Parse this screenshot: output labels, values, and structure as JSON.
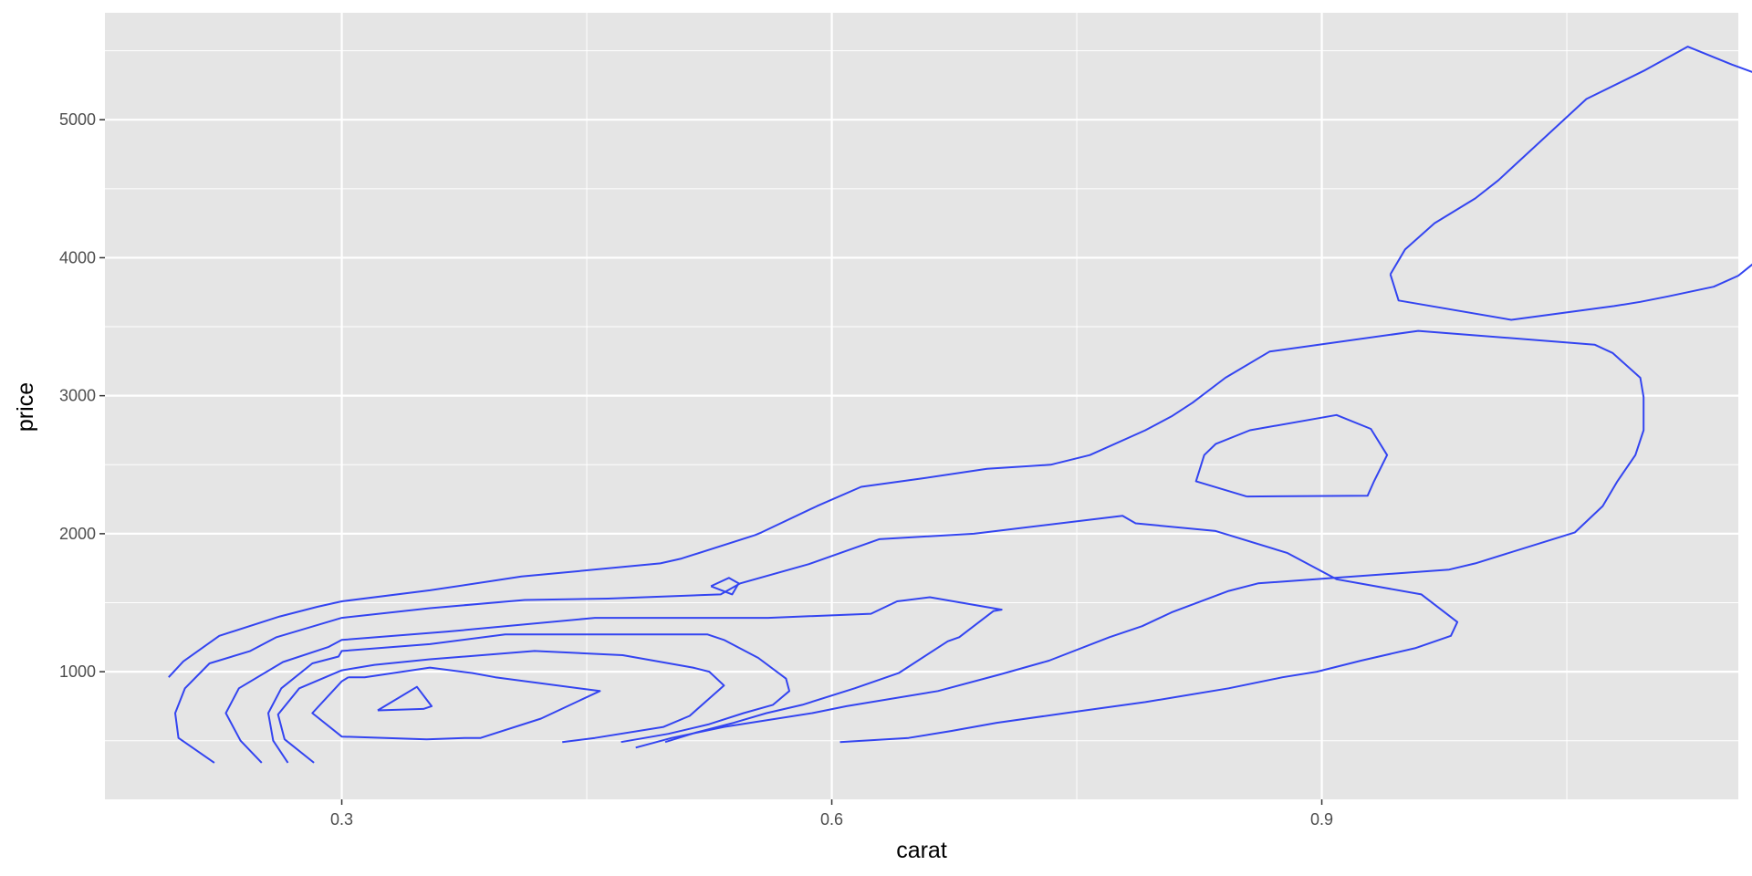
{
  "chart_data": {
    "type": "contour",
    "xlabel": "carat",
    "ylabel": "price",
    "xlim": [
      0.155,
      1.155
    ],
    "ylim": [
      75,
      5775
    ],
    "x_ticks": [
      0.3,
      0.6,
      0.9
    ],
    "x_tick_labels": [
      "0.3",
      "0.6",
      "0.9"
    ],
    "x_minor_ticks": [
      0.45,
      0.75,
      1.05
    ],
    "y_ticks": [
      1000,
      2000,
      3000,
      4000,
      5000
    ],
    "y_tick_labels": [
      "1000",
      "2000",
      "3000",
      "4000",
      "5000"
    ],
    "y_minor_ticks": [
      500,
      1500,
      2500,
      3500,
      4500,
      5500
    ],
    "grid": true,
    "legend": "none",
    "colors": {
      "panel": "#e5e5e5",
      "grid": "#ffffff",
      "contour": "#3344f0",
      "tick_text": "#4d4d4d",
      "axis_title": "#000000"
    },
    "contours": [
      {
        "points": [
          [
            0.194,
            960
          ],
          [
            0.203,
            1075
          ],
          [
            0.225,
            1260
          ],
          [
            0.262,
            1400
          ],
          [
            0.285,
            1470
          ],
          [
            0.3,
            1510
          ],
          [
            0.354,
            1590
          ],
          [
            0.41,
            1690
          ],
          [
            0.495,
            1785
          ],
          [
            0.508,
            1820
          ],
          [
            0.553,
            1990
          ],
          [
            0.557,
            2010
          ],
          [
            0.591,
            2200
          ],
          [
            0.618,
            2340
          ],
          [
            0.655,
            2400
          ],
          [
            0.695,
            2470
          ],
          [
            0.734,
            2500
          ],
          [
            0.758,
            2570
          ],
          [
            0.792,
            2750
          ],
          [
            0.808,
            2850
          ],
          [
            0.821,
            2950
          ],
          [
            0.841,
            3130
          ],
          [
            0.868,
            3320
          ],
          [
            0.959,
            3470
          ],
          [
            1.067,
            3370
          ],
          [
            1.078,
            3310
          ],
          [
            1.095,
            3130
          ],
          [
            1.097,
            2990
          ],
          [
            1.097,
            2750
          ],
          [
            1.092,
            2570
          ],
          [
            1.081,
            2380
          ],
          [
            1.072,
            2200
          ],
          [
            1.055,
            2010
          ],
          [
            0.994,
            1785
          ],
          [
            0.978,
            1740
          ],
          [
            0.861,
            1640
          ],
          [
            0.843,
            1585
          ],
          [
            0.808,
            1430
          ],
          [
            0.79,
            1330
          ],
          [
            0.77,
            1250
          ],
          [
            0.733,
            1080
          ],
          [
            0.703,
            980
          ],
          [
            0.665,
            860
          ],
          [
            0.609,
            750
          ],
          [
            0.588,
            700
          ],
          [
            0.534,
            600
          ],
          [
            0.502,
            520
          ],
          [
            0.48,
            450
          ]
        ]
      },
      {
        "points": [
          [
            0.854,
            2270
          ],
          [
            0.928,
            2275
          ],
          [
            0.932,
            2380
          ],
          [
            0.94,
            2570
          ],
          [
            0.93,
            2760
          ],
          [
            0.909,
            2860
          ],
          [
            0.856,
            2750
          ],
          [
            0.835,
            2650
          ],
          [
            0.828,
            2570
          ],
          [
            0.823,
            2380
          ],
          [
            0.854,
            2270
          ]
        ]
      },
      {
        "points": [
          [
            0.222,
            340
          ],
          [
            0.2,
            520
          ],
          [
            0.198,
            700
          ],
          [
            0.204,
            880
          ],
          [
            0.219,
            1060
          ],
          [
            0.244,
            1150
          ],
          [
            0.26,
            1250
          ],
          [
            0.3,
            1390
          ],
          [
            0.354,
            1460
          ],
          [
            0.412,
            1520
          ],
          [
            0.463,
            1530
          ],
          [
            0.532,
            1560
          ],
          [
            0.544,
            1640
          ],
          [
            0.586,
            1780
          ],
          [
            0.629,
            1960
          ],
          [
            0.687,
            2000
          ],
          [
            0.778,
            2130
          ],
          [
            0.786,
            2075
          ],
          [
            0.835,
            2020
          ],
          [
            0.879,
            1860
          ],
          [
            0.909,
            1670
          ],
          [
            0.961,
            1560
          ],
          [
            0.983,
            1360
          ],
          [
            0.979,
            1260
          ],
          [
            0.957,
            1170
          ],
          [
            0.924,
            1080
          ],
          [
            0.897,
            1000
          ],
          [
            0.876,
            960
          ],
          [
            0.843,
            880
          ],
          [
            0.792,
            780
          ],
          [
            0.743,
            700
          ],
          [
            0.701,
            630
          ],
          [
            0.673,
            570
          ],
          [
            0.647,
            520
          ],
          [
            0.605,
            490
          ]
        ]
      },
      {
        "points": [
          [
            0.251,
            340
          ],
          [
            0.238,
            500
          ],
          [
            0.229,
            700
          ],
          [
            0.237,
            880
          ],
          [
            0.264,
            1070
          ],
          [
            0.292,
            1180
          ],
          [
            0.3,
            1230
          ],
          [
            0.364,
            1290
          ],
          [
            0.455,
            1390
          ],
          [
            0.561,
            1390
          ],
          [
            0.624,
            1420
          ],
          [
            0.64,
            1510
          ],
          [
            0.66,
            1540
          ],
          [
            0.704,
            1450
          ],
          [
            0.699,
            1440
          ],
          [
            0.678,
            1250
          ],
          [
            0.671,
            1220
          ],
          [
            0.641,
            990
          ],
          [
            0.614,
            880
          ],
          [
            0.582,
            760
          ],
          [
            0.56,
            700
          ],
          [
            0.54,
            630
          ],
          [
            0.517,
            560
          ],
          [
            0.498,
            490
          ]
        ]
      },
      {
        "points": [
          [
            0.267,
            340
          ],
          [
            0.258,
            500
          ],
          [
            0.255,
            700
          ],
          [
            0.263,
            880
          ],
          [
            0.282,
            1060
          ],
          [
            0.298,
            1110
          ],
          [
            0.3,
            1150
          ],
          [
            0.354,
            1200
          ],
          [
            0.4,
            1270
          ],
          [
            0.524,
            1270
          ],
          [
            0.534,
            1230
          ],
          [
            0.555,
            1100
          ],
          [
            0.572,
            950
          ],
          [
            0.574,
            860
          ],
          [
            0.564,
            760
          ],
          [
            0.546,
            700
          ],
          [
            0.525,
            620
          ],
          [
            0.5,
            550
          ],
          [
            0.471,
            490
          ]
        ]
      },
      {
        "points": [
          [
            0.283,
            340
          ],
          [
            0.265,
            510
          ],
          [
            0.261,
            690
          ],
          [
            0.274,
            880
          ],
          [
            0.3,
            1010
          ],
          [
            0.32,
            1050
          ],
          [
            0.354,
            1090
          ],
          [
            0.418,
            1150
          ],
          [
            0.472,
            1120
          ],
          [
            0.515,
            1030
          ],
          [
            0.525,
            1000
          ],
          [
            0.534,
            900
          ],
          [
            0.513,
            680
          ],
          [
            0.497,
            600
          ],
          [
            0.455,
            520
          ],
          [
            0.435,
            490
          ]
        ]
      },
      {
        "points": [
          [
            0.304,
            960
          ],
          [
            0.3,
            930
          ],
          [
            0.282,
            700
          ],
          [
            0.3,
            530
          ],
          [
            0.352,
            510
          ],
          [
            0.376,
            520
          ],
          [
            0.385,
            520
          ],
          [
            0.422,
            660
          ],
          [
            0.458,
            860
          ],
          [
            0.394,
            960
          ],
          [
            0.38,
            990
          ],
          [
            0.354,
            1030
          ],
          [
            0.314,
            960
          ],
          [
            0.304,
            960
          ]
        ]
      },
      {
        "points": [
          [
            0.322,
            720
          ],
          [
            0.346,
            890
          ],
          [
            0.355,
            750
          ],
          [
            0.35,
            730
          ],
          [
            0.322,
            720
          ]
        ]
      },
      {
        "points": [
          [
            0.526,
            1620
          ],
          [
            0.539,
            1560
          ],
          [
            0.543,
            1640
          ],
          [
            0.537,
            1680
          ],
          [
            0.526,
            1620
          ]
        ]
      },
      {
        "points": [
          [
            0.942,
            3880
          ],
          [
            0.951,
            4060
          ],
          [
            0.969,
            4250
          ],
          [
            0.994,
            4430
          ],
          [
            1.008,
            4560
          ],
          [
            1.062,
            5150
          ],
          [
            1.098,
            5360
          ],
          [
            1.124,
            5530
          ],
          [
            1.151,
            5400
          ],
          [
            1.174,
            5300
          ],
          [
            1.198,
            5190
          ],
          [
            1.211,
            5080
          ],
          [
            1.218,
            5000
          ],
          [
            1.224,
            4810
          ],
          [
            1.222,
            4630
          ],
          [
            1.215,
            4440
          ],
          [
            1.203,
            4250
          ],
          [
            1.19,
            4130
          ],
          [
            1.175,
            4060
          ],
          [
            1.155,
            3870
          ],
          [
            1.14,
            3790
          ],
          [
            1.112,
            3720
          ],
          [
            1.095,
            3680
          ],
          [
            1.079,
            3650
          ],
          [
            1.016,
            3550
          ],
          [
            0.947,
            3690
          ],
          [
            0.942,
            3880
          ]
        ]
      }
    ]
  }
}
